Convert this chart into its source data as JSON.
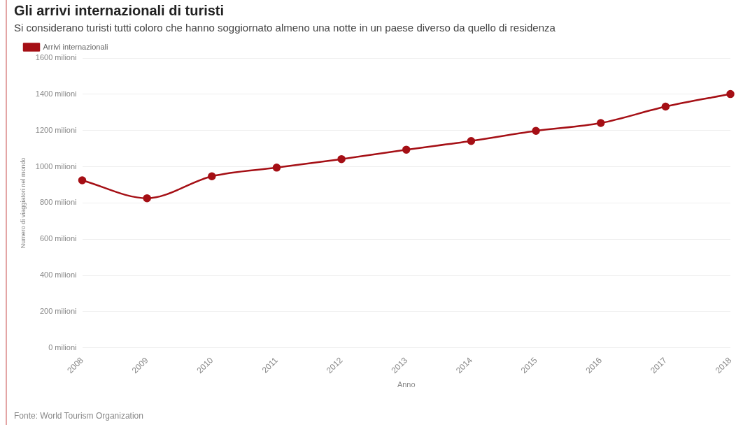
{
  "chart_data": {
    "type": "line",
    "title": "Gli arrivi internazionali di turisti",
    "subtitle": "Si considerano turisti tutti coloro che hanno soggiornato almeno una notte in un paese diverso da quello di residenza",
    "xlabel": "Anno",
    "ylabel": "Numero di viaggiatori nel mondo",
    "categories": [
      "2008",
      "2009",
      "2010",
      "2011",
      "2012",
      "2013",
      "2014",
      "2015",
      "2016",
      "2017",
      "2018"
    ],
    "series": [
      {
        "name": "Arrivi internazionali",
        "color": "#a50f15",
        "values": [
          925,
          826,
          947,
          995,
          1042,
          1094,
          1142,
          1198,
          1241,
          1332,
          1401
        ]
      }
    ],
    "ylim": [
      0,
      1600
    ],
    "yticks": [
      {
        "value": 0,
        "label": "0 milioni"
      },
      {
        "value": 200,
        "label": "200 milioni"
      },
      {
        "value": 400,
        "label": "400 milioni"
      },
      {
        "value": 600,
        "label": "600 milioni"
      },
      {
        "value": 800,
        "label": "800 milioni"
      },
      {
        "value": 1000,
        "label": "1000 milioni"
      },
      {
        "value": 1200,
        "label": "1200 milioni"
      },
      {
        "value": 1400,
        "label": "1400 milioni"
      },
      {
        "value": 1600,
        "label": "1600 milioni"
      }
    ],
    "grid": "y",
    "legend": "top left",
    "marker": "circle",
    "line_style": "solid",
    "annotations": [
      "Fonte: World Tourism Organization"
    ]
  }
}
